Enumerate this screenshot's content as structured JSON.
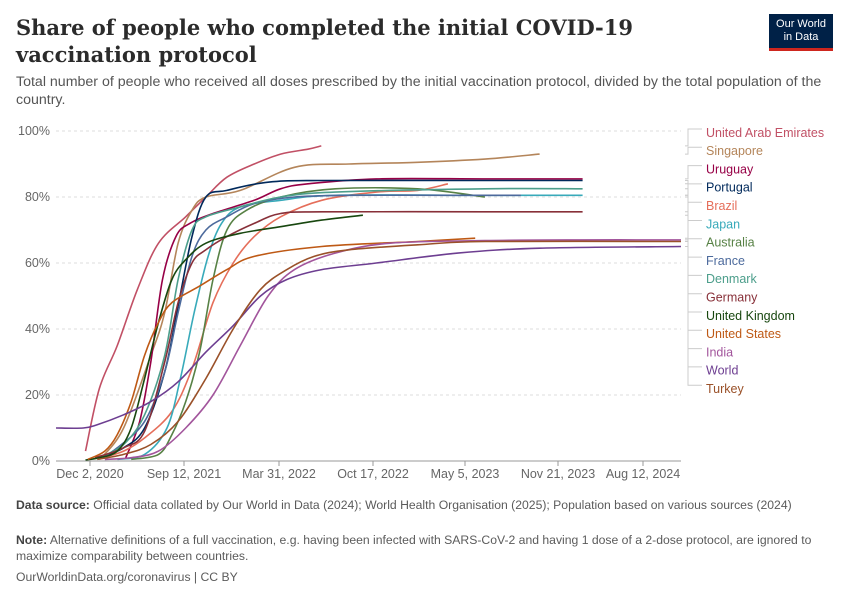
{
  "header": {
    "title": "Share of people who completed the initial COVID-19 vaccination protocol",
    "subtitle": "Total number of people who received all doses prescribed by the initial vaccination protocol, divided by the total population of the country."
  },
  "logo": {
    "line1": "Our World",
    "line2": "in Data",
    "bg": "#002147",
    "accent": "#ce261e"
  },
  "footer": {
    "source_label": "Data source:",
    "source_text": " Official data collated by Our World in Data (2024); World Health Organisation (2025); Population based on various sources (2024)",
    "note_label": "Note:",
    "note_text": " Alternative definitions of a full vaccination, e.g. having been infected with SARS-CoV-2 and having 1 dose of a 2-dose protocol, are ignored to maximize comparability between countries.",
    "url": "OurWorldinData.org/coronavirus | CC BY"
  },
  "chart_data": {
    "type": "line",
    "y_ticks": [
      "0%",
      "20%",
      "40%",
      "60%",
      "80%",
      "100%"
    ],
    "ylim": [
      0,
      100
    ],
    "x_ticks": [
      "Dec 2, 2020",
      "Sep 12, 2021",
      "Mar 31, 2022",
      "Oct 17, 2022",
      "May 5, 2023",
      "Nov 21, 2023",
      "Aug 12, 2024"
    ],
    "xlim": [
      "2020-10-15",
      "2024-08-12"
    ],
    "grid": "horizontal-dashed",
    "legend_position": "right",
    "series": [
      {
        "name": "United Arab Emirates",
        "color": "#c15065",
        "points": [
          [
            "2020-12-20",
            3
          ],
          [
            "2021-01-20",
            22
          ],
          [
            "2021-03-01",
            35
          ],
          [
            "2021-04-15",
            52
          ],
          [
            "2021-06-01",
            66
          ],
          [
            "2021-08-01",
            74
          ],
          [
            "2021-09-15",
            80
          ],
          [
            "2021-11-01",
            86
          ],
          [
            "2022-01-01",
            90
          ],
          [
            "2022-03-01",
            93
          ],
          [
            "2022-05-01",
            94.5
          ],
          [
            "2022-05-31",
            95.5
          ]
        ]
      },
      {
        "name": "Singapore",
        "color": "#b4855a",
        "points": [
          [
            "2021-01-25",
            1
          ],
          [
            "2021-03-15",
            10
          ],
          [
            "2021-05-15",
            32
          ],
          [
            "2021-06-15",
            45
          ],
          [
            "2021-07-15",
            66
          ],
          [
            "2021-08-15",
            76
          ],
          [
            "2021-09-15",
            80
          ],
          [
            "2021-12-01",
            82
          ],
          [
            "2022-04-01",
            89
          ],
          [
            "2022-08-01",
            90
          ],
          [
            "2023-01-01",
            90.5
          ],
          [
            "2023-06-01",
            91.5
          ],
          [
            "2023-10-01",
            93
          ]
        ]
      },
      {
        "name": "Uruguay",
        "color": "#970046",
        "points": [
          [
            "2021-03-20",
            1
          ],
          [
            "2021-04-20",
            12
          ],
          [
            "2021-05-15",
            30
          ],
          [
            "2021-06-10",
            55
          ],
          [
            "2021-07-10",
            68
          ],
          [
            "2021-08-10",
            72
          ],
          [
            "2021-10-01",
            75
          ],
          [
            "2022-01-01",
            79
          ],
          [
            "2022-03-01",
            82.5
          ],
          [
            "2022-05-01",
            84
          ],
          [
            "2022-10-01",
            85.5
          ],
          [
            "2023-06-01",
            85.5
          ],
          [
            "2024-01-05",
            85.5
          ]
        ]
      },
      {
        "name": "Portugal",
        "color": "#00295b",
        "points": [
          [
            "2021-01-20",
            1
          ],
          [
            "2021-03-15",
            4
          ],
          [
            "2021-05-01",
            10
          ],
          [
            "2021-06-15",
            27
          ],
          [
            "2021-07-15",
            47
          ],
          [
            "2021-08-15",
            68
          ],
          [
            "2021-09-15",
            80
          ],
          [
            "2021-11-01",
            82
          ],
          [
            "2022-02-01",
            84.5
          ],
          [
            "2022-06-01",
            85
          ],
          [
            "2023-06-01",
            85
          ],
          [
            "2024-01-05",
            85
          ]
        ]
      },
      {
        "name": "Brazil",
        "color": "#e56e5a",
        "points": [
          [
            "2021-01-25",
            1
          ],
          [
            "2021-03-15",
            3
          ],
          [
            "2021-05-01",
            7
          ],
          [
            "2021-07-01",
            15
          ],
          [
            "2021-08-15",
            28
          ],
          [
            "2021-10-01",
            48
          ],
          [
            "2021-11-15",
            60
          ],
          [
            "2022-01-01",
            68
          ],
          [
            "2022-03-01",
            74
          ],
          [
            "2022-06-01",
            79
          ],
          [
            "2022-10-01",
            81.5
          ],
          [
            "2023-01-01",
            82
          ],
          [
            "2023-03-10",
            84
          ]
        ]
      },
      {
        "name": "Japan",
        "color": "#38aaba",
        "points": [
          [
            "2021-03-01",
            0.5
          ],
          [
            "2021-05-01",
            2
          ],
          [
            "2021-06-20",
            10
          ],
          [
            "2021-07-20",
            25
          ],
          [
            "2021-08-20",
            45
          ],
          [
            "2021-09-20",
            62
          ],
          [
            "2021-10-20",
            72
          ],
          [
            "2021-12-01",
            77
          ],
          [
            "2022-03-01",
            79
          ],
          [
            "2022-07-01",
            80.5
          ],
          [
            "2023-06-01",
            80.5
          ],
          [
            "2024-01-05",
            80.5
          ]
        ]
      },
      {
        "name": "Australia",
        "color": "#578145",
        "points": [
          [
            "2021-04-01",
            0.5
          ],
          [
            "2021-06-01",
            2
          ],
          [
            "2021-07-01",
            8
          ],
          [
            "2021-08-01",
            18
          ],
          [
            "2021-09-01",
            33
          ],
          [
            "2021-10-01",
            55
          ],
          [
            "2021-11-01",
            70
          ],
          [
            "2021-12-15",
            76
          ],
          [
            "2022-03-01",
            80
          ],
          [
            "2022-07-01",
            82.5
          ],
          [
            "2023-01-01",
            82.5
          ],
          [
            "2023-06-01",
            80
          ]
        ]
      },
      {
        "name": "France",
        "color": "#4c6a9c",
        "points": [
          [
            "2021-01-20",
            0.5
          ],
          [
            "2021-03-01",
            4
          ],
          [
            "2021-05-01",
            12
          ],
          [
            "2021-06-15",
            27
          ],
          [
            "2021-07-15",
            45
          ],
          [
            "2021-08-15",
            62
          ],
          [
            "2021-09-15",
            70
          ],
          [
            "2021-11-01",
            74
          ],
          [
            "2022-01-01",
            78
          ],
          [
            "2022-04-01",
            80
          ],
          [
            "2022-08-01",
            80.5
          ],
          [
            "2023-03-01",
            80.5
          ],
          [
            "2023-08-20",
            80.5
          ]
        ]
      },
      {
        "name": "Denmark",
        "color": "#4c9e8b",
        "points": [
          [
            "2021-01-20",
            1
          ],
          [
            "2021-03-15",
            5
          ],
          [
            "2021-05-01",
            14
          ],
          [
            "2021-06-15",
            32
          ],
          [
            "2021-07-15",
            55
          ],
          [
            "2021-08-15",
            70
          ],
          [
            "2021-09-15",
            74
          ],
          [
            "2021-12-01",
            77
          ],
          [
            "2022-03-01",
            80
          ],
          [
            "2022-07-01",
            81.5
          ],
          [
            "2023-06-01",
            82.5
          ],
          [
            "2024-01-05",
            82.5
          ]
        ]
      },
      {
        "name": "Germany",
        "color": "#883039",
        "points": [
          [
            "2021-01-10",
            1
          ],
          [
            "2021-03-15",
            4
          ],
          [
            "2021-05-01",
            9
          ],
          [
            "2021-06-15",
            30
          ],
          [
            "2021-07-15",
            48
          ],
          [
            "2021-08-15",
            60
          ],
          [
            "2021-09-15",
            64
          ],
          [
            "2021-11-01",
            68
          ],
          [
            "2022-01-01",
            72
          ],
          [
            "2022-03-01",
            75
          ],
          [
            "2022-06-01",
            75.5
          ],
          [
            "2023-06-01",
            75.5
          ],
          [
            "2024-01-05",
            75.5
          ]
        ]
      },
      {
        "name": "United Kingdom",
        "color": "#18470f",
        "points": [
          [
            "2020-12-20",
            0.3
          ],
          [
            "2021-01-20",
            1
          ],
          [
            "2021-03-01",
            3
          ],
          [
            "2021-04-01",
            10
          ],
          [
            "2021-05-01",
            25
          ],
          [
            "2021-06-01",
            42
          ],
          [
            "2021-07-01",
            55
          ],
          [
            "2021-08-01",
            61
          ],
          [
            "2021-09-15",
            66
          ],
          [
            "2021-12-01",
            69
          ],
          [
            "2022-03-01",
            71
          ],
          [
            "2022-06-01",
            73
          ],
          [
            "2022-09-01",
            74.5
          ]
        ]
      },
      {
        "name": "United States",
        "color": "#be5915",
        "points": [
          [
            "2020-12-25",
            0.5
          ],
          [
            "2021-02-01",
            3
          ],
          [
            "2021-03-01",
            8
          ],
          [
            "2021-04-01",
            18
          ],
          [
            "2021-05-01",
            32
          ],
          [
            "2021-06-01",
            42
          ],
          [
            "2021-07-01",
            48
          ],
          [
            "2021-09-01",
            53
          ],
          [
            "2021-11-01",
            58
          ],
          [
            "2022-01-01",
            62
          ],
          [
            "2022-06-01",
            65
          ],
          [
            "2023-01-01",
            66.5
          ],
          [
            "2023-05-10",
            67.5
          ]
        ]
      },
      {
        "name": "India",
        "color": "#a2559c",
        "points": [
          [
            "2021-02-01",
            0.5
          ],
          [
            "2021-04-01",
            1
          ],
          [
            "2021-06-01",
            3
          ],
          [
            "2021-08-01",
            10
          ],
          [
            "2021-10-01",
            20
          ],
          [
            "2021-12-01",
            35
          ],
          [
            "2022-02-01",
            50
          ],
          [
            "2022-04-01",
            58
          ],
          [
            "2022-07-01",
            63
          ],
          [
            "2022-11-01",
            66
          ],
          [
            "2023-06-01",
            66.8
          ],
          [
            "2024-01-01",
            67
          ],
          [
            "2024-08-12",
            67
          ]
        ]
      },
      {
        "name": "World",
        "color": "#6d3e91",
        "points": [
          [
            "2020-10-15",
            10
          ],
          [
            "2020-12-15",
            10
          ],
          [
            "2021-01-15",
            11
          ],
          [
            "2021-03-15",
            14
          ],
          [
            "2021-05-15",
            18
          ],
          [
            "2021-07-15",
            24
          ],
          [
            "2021-09-15",
            33
          ],
          [
            "2021-11-15",
            41
          ],
          [
            "2022-01-15",
            50
          ],
          [
            "2022-03-15",
            55
          ],
          [
            "2022-06-01",
            58
          ],
          [
            "2022-10-01",
            60
          ],
          [
            "2023-04-01",
            63
          ],
          [
            "2023-10-01",
            64.5
          ],
          [
            "2024-08-12",
            65
          ]
        ]
      },
      {
        "name": "Turkey",
        "color": "#9a5129",
        "points": [
          [
            "2021-01-15",
            0.5
          ],
          [
            "2021-03-15",
            2
          ],
          [
            "2021-05-15",
            5
          ],
          [
            "2021-07-15",
            12
          ],
          [
            "2021-09-15",
            25
          ],
          [
            "2021-11-15",
            40
          ],
          [
            "2022-01-15",
            52
          ],
          [
            "2022-03-15",
            58
          ],
          [
            "2022-05-15",
            62
          ],
          [
            "2022-08-01",
            64
          ],
          [
            "2023-01-01",
            65.5
          ],
          [
            "2023-06-01",
            66.5
          ],
          [
            "2024-08-12",
            66.5
          ]
        ]
      }
    ],
    "legend_order": [
      "United Arab Emirates",
      "Singapore",
      "Uruguay",
      "Portugal",
      "Brazil",
      "Japan",
      "Australia",
      "France",
      "Denmark",
      "Germany",
      "United Kingdom",
      "United States",
      "India",
      "World",
      "Turkey"
    ]
  }
}
